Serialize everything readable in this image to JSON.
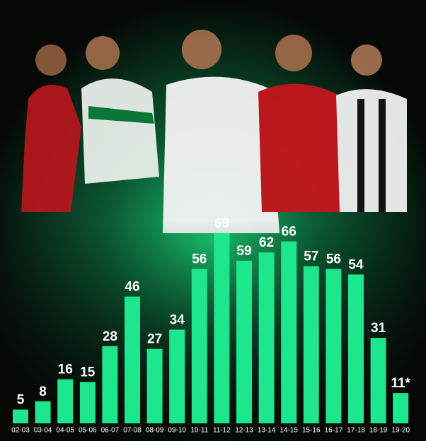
{
  "chart_data": {
    "type": "bar",
    "categories": [
      "02-03",
      "03-04",
      "04-05",
      "05-06",
      "06-07",
      "07-08",
      "08-09",
      "09-10",
      "10-11",
      "11-12",
      "12-13",
      "13-14",
      "14-15",
      "15-16",
      "16-17",
      "17-18",
      "18-19",
      "19-20"
    ],
    "values": [
      5,
      8,
      16,
      15,
      28,
      46,
      27,
      34,
      56,
      69,
      59,
      62,
      66,
      57,
      56,
      54,
      31,
      11
    ],
    "value_labels": [
      "5",
      "8",
      "16",
      "15",
      "28",
      "46",
      "27",
      "34",
      "56",
      "69",
      "59",
      "62",
      "66",
      "57",
      "56",
      "54",
      "31",
      "11*"
    ],
    "color": "#1ee68c"
  }
}
